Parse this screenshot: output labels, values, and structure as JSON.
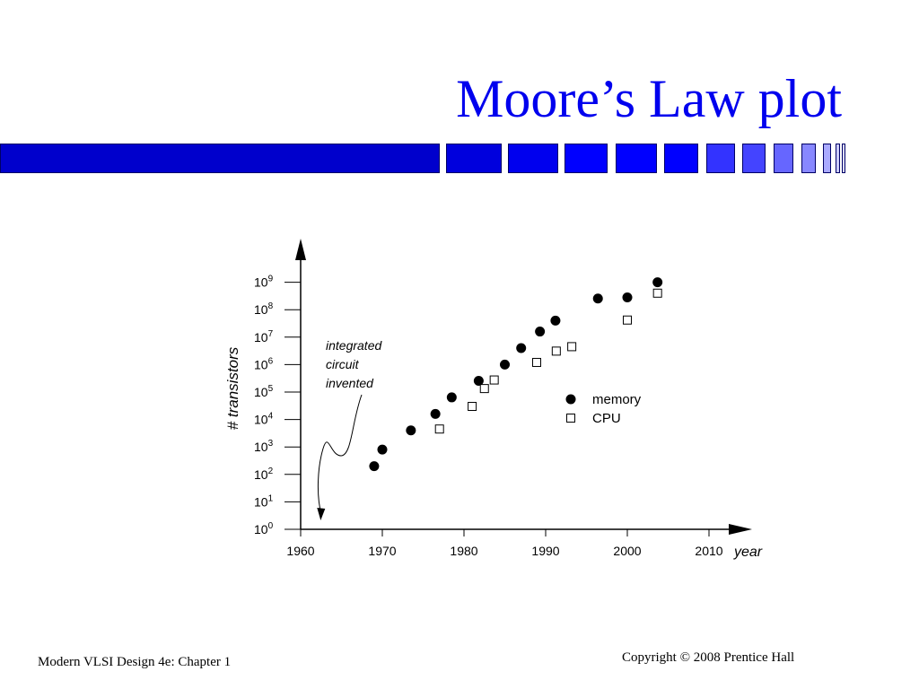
{
  "slide": {
    "title": "Moore’s Law plot",
    "footer_left": "Modern VLSI Design 4e: Chapter 1",
    "footer_right": "Copyright © 2008 Prentice Hall",
    "bar_colors": [
      "#0000cc",
      "#0000dd",
      "#0000ee",
      "#0000ff",
      "#0000ff",
      "#0000ff",
      "#3333ff",
      "#4444ff",
      "#6666ff",
      "#8888ff",
      "#aaaaff",
      "#ccccff",
      "#ddddff"
    ]
  },
  "chart_data": {
    "type": "scatter",
    "title": "",
    "xlabel": "year",
    "ylabel": "# transistors",
    "x_ticks": [
      {
        "value": 1960,
        "label": "1960"
      },
      {
        "value": 1970,
        "label": "1970"
      },
      {
        "value": 1980,
        "label": "1980"
      },
      {
        "value": 1990,
        "label": "1990"
      },
      {
        "value": 2000,
        "label": "2000"
      },
      {
        "value": 2010,
        "label": "2010"
      }
    ],
    "y_scale": "log",
    "y_ticks": [
      {
        "value": 1,
        "base": "10",
        "exp": "0"
      },
      {
        "value": 10,
        "base": "10",
        "exp": "1"
      },
      {
        "value": 100,
        "base": "10",
        "exp": "2"
      },
      {
        "value": 1000,
        "base": "10",
        "exp": "3"
      },
      {
        "value": 10000,
        "base": "10",
        "exp": "4"
      },
      {
        "value": 100000,
        "base": "10",
        "exp": "5"
      },
      {
        "value": 1000000,
        "base": "10",
        "exp": "6"
      },
      {
        "value": 10000000,
        "base": "10",
        "exp": "7"
      },
      {
        "value": 100000000,
        "base": "10",
        "exp": "8"
      },
      {
        "value": 1000000000,
        "base": "10",
        "exp": "9"
      }
    ],
    "xlim": [
      1960,
      2010
    ],
    "ylim": [
      1,
      1000000000
    ],
    "legend": "right",
    "series": [
      {
        "name": "memory",
        "marker": "filled-circle",
        "points": [
          [
            1969,
            200
          ],
          [
            1970,
            800
          ],
          [
            1973.5,
            4000
          ],
          [
            1976.5,
            16000
          ],
          [
            1978.5,
            64000
          ],
          [
            1981.8,
            256000
          ],
          [
            1985,
            1000000
          ],
          [
            1987,
            4000000
          ],
          [
            1989.3,
            16000000
          ],
          [
            1991.2,
            40000000
          ],
          [
            1996.4,
            256000000
          ],
          [
            2000,
            280000000
          ],
          [
            2003.7,
            1000000000
          ]
        ]
      },
      {
        "name": "CPU",
        "marker": "open-square",
        "points": [
          [
            1977,
            4500
          ],
          [
            1981,
            30000
          ],
          [
            1982.5,
            134000
          ],
          [
            1983.7,
            275000
          ],
          [
            1988.9,
            1200000
          ],
          [
            1991.3,
            3100000
          ],
          [
            1993.2,
            4500000
          ],
          [
            2000,
            42000000
          ],
          [
            2003.7,
            400000000
          ]
        ]
      }
    ],
    "annotation": {
      "lines": [
        "integrated",
        "circuit",
        "invented"
      ],
      "x": 1963
    }
  }
}
